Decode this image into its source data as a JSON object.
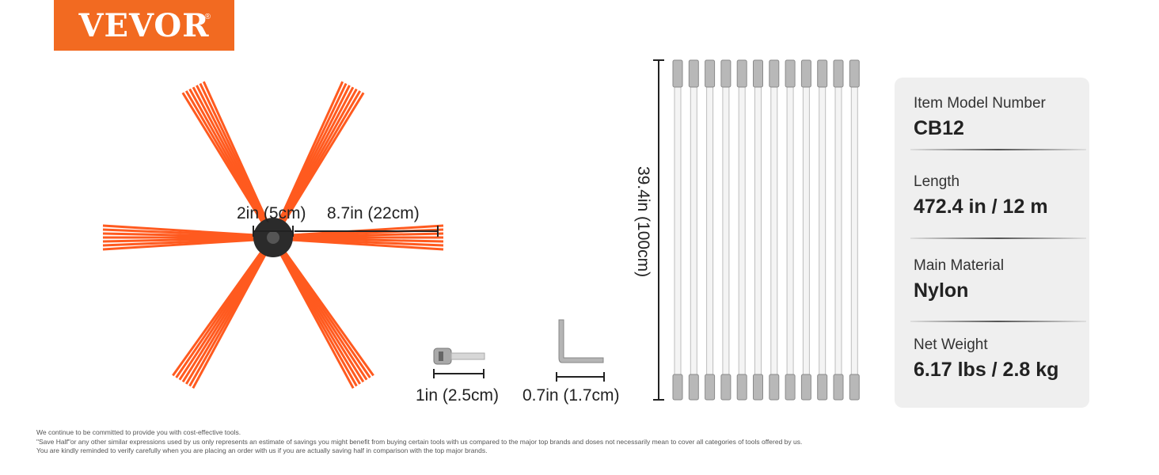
{
  "brand": {
    "name": "VEVOR",
    "reg": "®"
  },
  "dimensions": {
    "hub": "2in (5cm)",
    "bristle": "8.7in (22cm)",
    "rod_length": "39.4in (100cm)",
    "adapter": "1in (2.5cm)",
    "wrench": "0.7in (1.7cm)"
  },
  "specs": [
    {
      "label": "Item Model Number",
      "value": "CB12"
    },
    {
      "label": "Length",
      "value": "472.4 in / 12 m"
    },
    {
      "label": "Main Material",
      "value": "Nylon"
    },
    {
      "label": "Net Weight",
      "value": "6.17 lbs / 2.8 kg"
    }
  ],
  "rod_count": 12,
  "disclaimer": [
    "We continue to be committed to provide you with cost-effective tools.",
    "\"Save Half\"or any other similar expressions used by us only represents an estimate of savings you might benefit from buying certain tools with us compared to the major top brands and doses not necessarily mean to cover all categories of tools offered by us.",
    "You are kindly reminded to verify carefully when you are placing an order with us if you are actually saving half in comparison with the top major brands."
  ],
  "colors": {
    "brand_orange": "#f26a21",
    "bristle": "#ff5a1f",
    "card_bg": "#efefef"
  }
}
